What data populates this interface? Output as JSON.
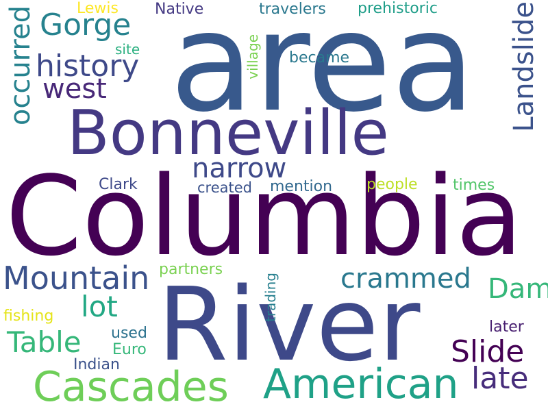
{
  "words": [
    {
      "text": "area",
      "color": "#38598c",
      "orientation": "horizontal"
    },
    {
      "text": "Columbia",
      "color": "#440154",
      "orientation": "horizontal"
    },
    {
      "text": "River",
      "color": "#3e4989",
      "orientation": "horizontal"
    },
    {
      "text": "Bonneville",
      "color": "#443983",
      "orientation": "horizontal"
    },
    {
      "text": "American",
      "color": "#1fa187",
      "orientation": "horizontal"
    },
    {
      "text": "Cascades",
      "color": "#6ece58",
      "orientation": "horizontal"
    },
    {
      "text": "Mountain",
      "color": "#3b528b",
      "orientation": "horizontal"
    },
    {
      "text": "history",
      "color": "#3e4989",
      "orientation": "horizontal"
    },
    {
      "text": "Gorge",
      "color": "#26828e",
      "orientation": "horizontal"
    },
    {
      "text": "west",
      "color": "#482878",
      "orientation": "horizontal"
    },
    {
      "text": "narrow",
      "color": "#3e4989",
      "orientation": "horizontal"
    },
    {
      "text": "Landslide",
      "color": "#3b528b",
      "orientation": "vertical"
    },
    {
      "text": "occurred",
      "color": "#26828e",
      "orientation": "vertical"
    },
    {
      "text": "crammed",
      "color": "#2a788e",
      "orientation": "horizontal"
    },
    {
      "text": "Slide",
      "color": "#440154",
      "orientation": "horizontal"
    },
    {
      "text": "Table",
      "color": "#35b779",
      "orientation": "horizontal"
    },
    {
      "text": "lot",
      "color": "#22a884",
      "orientation": "horizontal"
    },
    {
      "text": "Dam",
      "color": "#35b779",
      "orientation": "horizontal"
    },
    {
      "text": "late",
      "color": "#472d7b",
      "orientation": "horizontal"
    },
    {
      "text": "Lewis",
      "color": "#fde725",
      "orientation": "horizontal"
    },
    {
      "text": "Native",
      "color": "#443983",
      "orientation": "horizontal"
    },
    {
      "text": "travelers",
      "color": "#2a788e",
      "orientation": "horizontal"
    },
    {
      "text": "prehistoric",
      "color": "#1f9e89",
      "orientation": "horizontal"
    },
    {
      "text": "site",
      "color": "#29af7f",
      "orientation": "horizontal"
    },
    {
      "text": "village",
      "color": "#7ad151",
      "orientation": "vertical"
    },
    {
      "text": "became",
      "color": "#2a788e",
      "orientation": "horizontal"
    },
    {
      "text": "Clark",
      "color": "#3e4989",
      "orientation": "horizontal"
    },
    {
      "text": "created",
      "color": "#3b528b",
      "orientation": "horizontal"
    },
    {
      "text": "mention",
      "color": "#31688e",
      "orientation": "horizontal"
    },
    {
      "text": "people",
      "color": "#bddf26",
      "orientation": "horizontal"
    },
    {
      "text": "times",
      "color": "#52c569",
      "orientation": "horizontal"
    },
    {
      "text": "partners",
      "color": "#7ad151",
      "orientation": "horizontal"
    },
    {
      "text": "trading",
      "color": "#277f8e",
      "orientation": "vertical"
    },
    {
      "text": "fishing",
      "color": "#e5e419",
      "orientation": "horizontal"
    },
    {
      "text": "used",
      "color": "#2c728e",
      "orientation": "horizontal"
    },
    {
      "text": "later",
      "color": "#481f70",
      "orientation": "horizontal"
    },
    {
      "text": "Euro",
      "color": "#35b779",
      "orientation": "horizontal"
    },
    {
      "text": "Indian",
      "color": "#3b528b",
      "orientation": "horizontal"
    }
  ]
}
